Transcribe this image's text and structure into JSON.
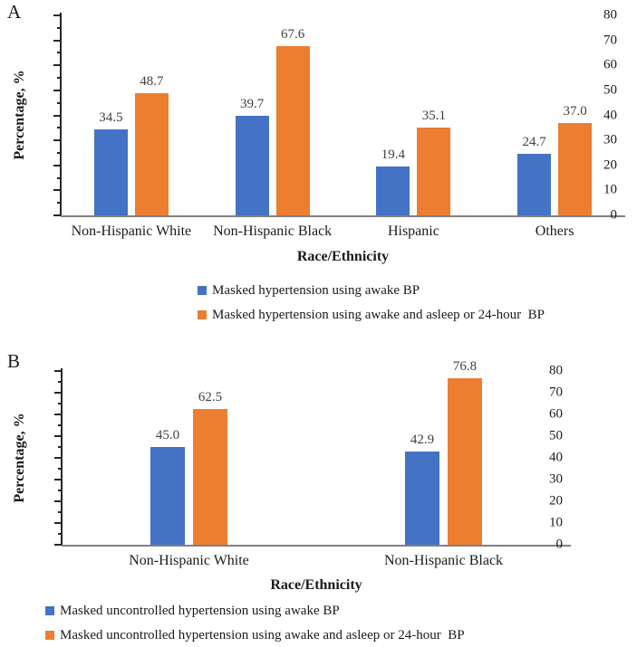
{
  "colors": {
    "series_blue": "#4472C4",
    "series_orange": "#ED7D31",
    "x_axis_line": "#808080",
    "y_axis_line": "#262626",
    "data_label": "#404040",
    "text": "#1a1a1a"
  },
  "chart_data": [
    {
      "type": "bar",
      "panel": "A",
      "categories": [
        "Non-Hispanic White",
        "Non-Hispanic Black",
        "Hispanic",
        "Others"
      ],
      "series": [
        {
          "name": "Masked hypertension using awake BP",
          "color": "#4472C4",
          "values": [
            34.5,
            39.7,
            19.4,
            24.7
          ],
          "value_labels": [
            "34.5",
            "39.7",
            "19.4",
            "24.7"
          ]
        },
        {
          "name": "Masked hypertension using awake and asleep or 24-hour  BP",
          "color": "#ED7D31",
          "values": [
            48.7,
            67.6,
            35.1,
            37.0
          ],
          "value_labels": [
            "48.7",
            "67.6",
            "35.1",
            "37.0"
          ]
        }
      ],
      "xlabel": "Race/Ethnicity",
      "ylabel": "Percentage, %",
      "ylim": [
        0,
        80
      ],
      "ytick_step": 10,
      "minor_tick_step": 5,
      "grid": false,
      "legend_position": "bottom"
    },
    {
      "type": "bar",
      "panel": "B",
      "categories": [
        "Non-Hispanic White",
        "Non-Hispanic Black"
      ],
      "series": [
        {
          "name": "Masked uncontrolled hypertension using awake BP",
          "color": "#4472C4",
          "values": [
            45.0,
            42.9
          ],
          "value_labels": [
            "45.0",
            "42.9"
          ]
        },
        {
          "name": "Masked uncontrolled hypertension using awake and asleep or 24-hour  BP",
          "color": "#ED7D31",
          "values": [
            62.5,
            76.8
          ],
          "value_labels": [
            "62.5",
            "76.8"
          ]
        }
      ],
      "xlabel": "Race/Ethnicity",
      "ylabel": "Percentage, %",
      "ylim": [
        0,
        80
      ],
      "ytick_step": 10,
      "minor_tick_step": 5,
      "grid": false,
      "legend_position": "bottom"
    }
  ]
}
